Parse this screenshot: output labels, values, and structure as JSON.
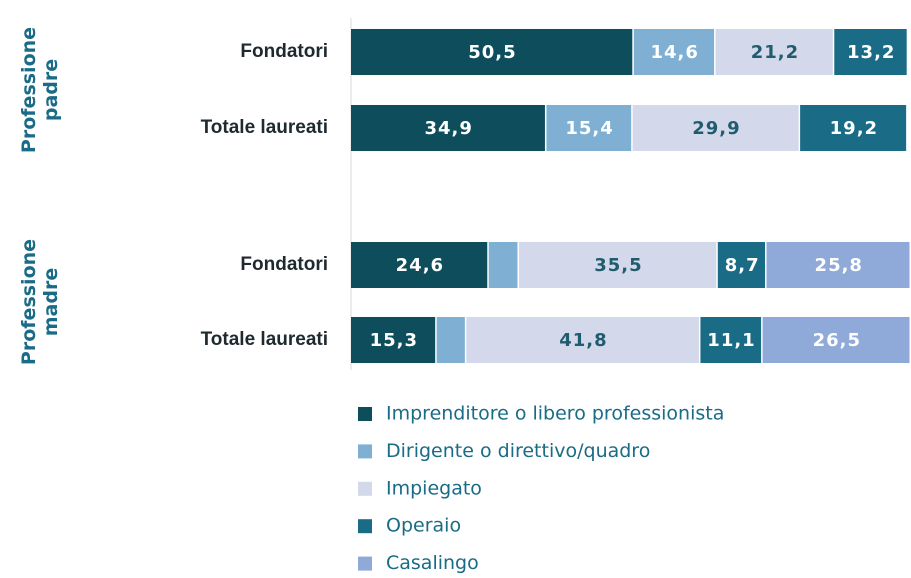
{
  "chart_data": {
    "type": "stacked-bar-horizontal",
    "groups": [
      "Professione padre",
      "Professione madre"
    ],
    "categories": [
      "Fondatori",
      "Totale laureati",
      "Fondatori",
      "Totale laureati"
    ],
    "xlim": [
      0,
      100
    ],
    "series": [
      {
        "name": "Imprenditore o libero professionista",
        "color": "#0e4d5c",
        "values": [
          50.5,
          34.9,
          24.6,
          15.3
        ],
        "value_labels": [
          "50,5",
          "34,9",
          "24,6",
          "15,3"
        ]
      },
      {
        "name": "Dirigente o direttivo/quadro",
        "color": "#7fb0d3",
        "values": [
          14.6,
          15.4,
          5.4,
          5.3
        ],
        "value_labels": [
          "14,6",
          "15,4",
          null,
          null
        ]
      },
      {
        "name": "Impiegato",
        "color": "#d3d8ea",
        "values": [
          21.2,
          29.9,
          35.5,
          41.8
        ],
        "value_labels": [
          "21,2",
          "29,9",
          "35,5",
          "41,8"
        ]
      },
      {
        "name": "Operaio",
        "color": "#1a6b86",
        "values": [
          13.2,
          19.2,
          8.7,
          11.1
        ],
        "value_labels": [
          "13,2",
          "19,2",
          "8,7",
          "11,1"
        ]
      },
      {
        "name": "Casalingo",
        "color": "#8fa9d8",
        "values": [
          null,
          null,
          25.8,
          26.5
        ],
        "value_labels": [
          null,
          null,
          "25,8",
          "26,5"
        ]
      }
    ]
  }
}
